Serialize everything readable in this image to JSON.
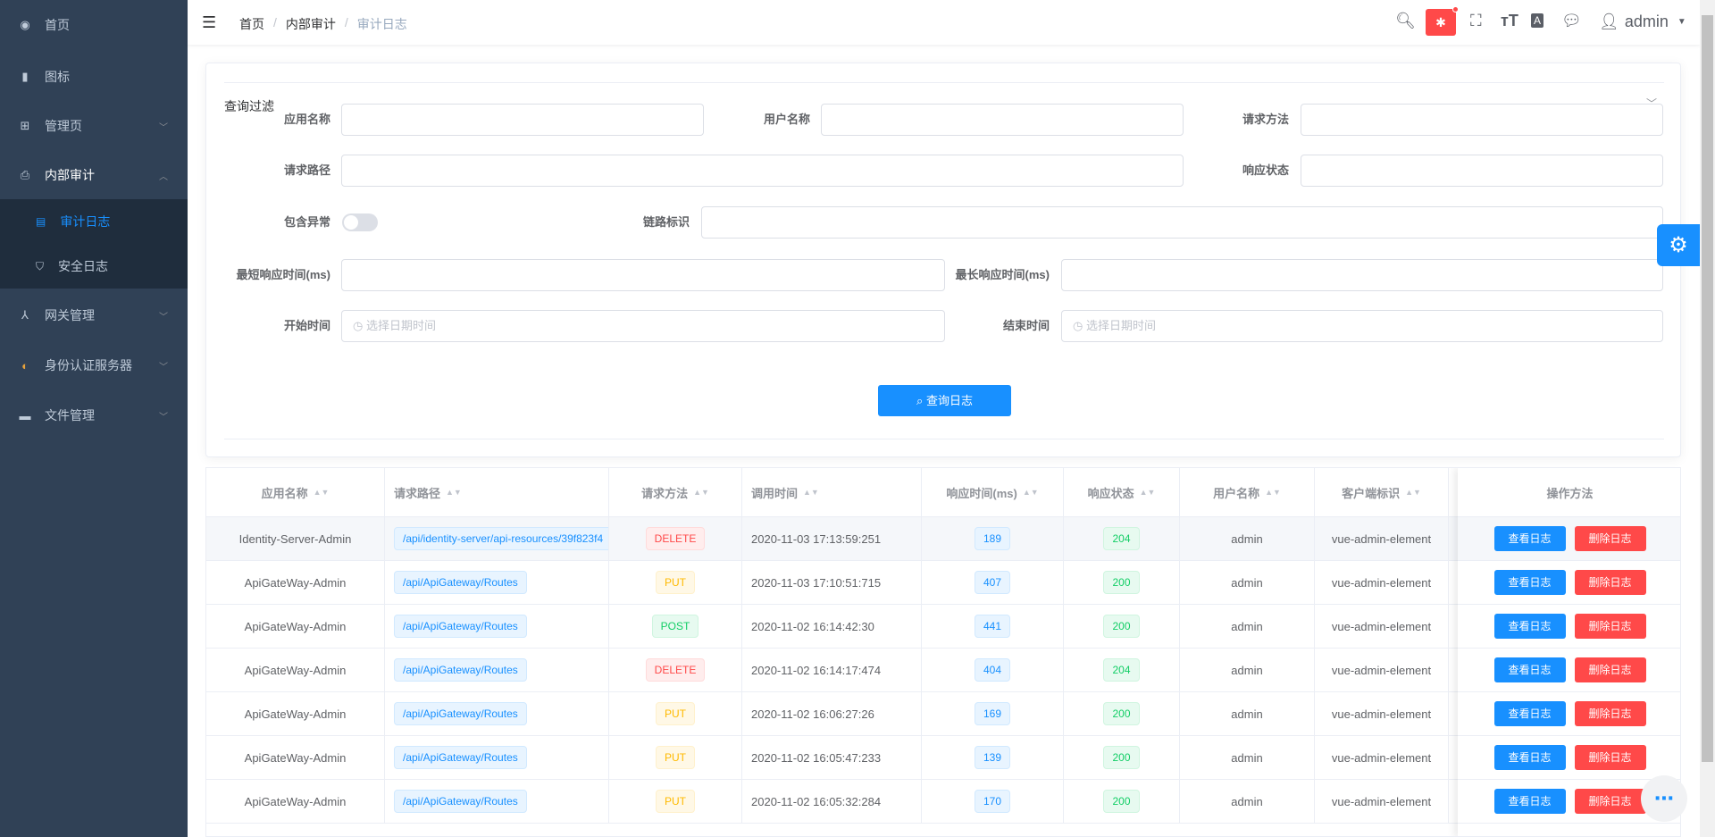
{
  "sidebar": {
    "items": [
      {
        "label": "首页",
        "icon": "dashboard-icon"
      },
      {
        "label": "图标",
        "icon": "icon-icon"
      },
      {
        "label": "管理页",
        "icon": "grid-icon",
        "expandable": true
      },
      {
        "label": "内部审计",
        "icon": "audit-icon",
        "expandable": true,
        "open": true,
        "children": [
          {
            "label": "审计日志",
            "icon": "document-icon",
            "active": true
          },
          {
            "label": "安全日志",
            "icon": "shield-icon"
          }
        ]
      },
      {
        "label": "网关管理",
        "icon": "gateway-icon",
        "expandable": true
      },
      {
        "label": "身份认证服务器",
        "icon": "identity-icon",
        "expandable": true
      },
      {
        "label": "文件管理",
        "icon": "folder-icon",
        "expandable": true
      }
    ]
  },
  "header": {
    "breadcrumb": [
      "首页",
      "内部审计",
      "审计日志"
    ],
    "user": "admin",
    "icons": [
      "search-icon",
      "bug-icon",
      "fullscreen-icon",
      "font-size-icon",
      "translate-icon",
      "message-icon"
    ]
  },
  "filter": {
    "title": "查询过滤",
    "labels": {
      "app": "应用名称",
      "user": "用户名称",
      "method": "请求方法",
      "path": "请求路径",
      "status": "响应状态",
      "exception": "包含异常",
      "trace": "链路标识",
      "min": "最短响应时间(ms)",
      "max": "最长响应时间(ms)",
      "start": "开始时间",
      "end": "结束时间"
    },
    "date_placeholder": "选择日期时间",
    "include_exception": false,
    "search_button": "查询日志"
  },
  "table": {
    "columns": [
      "应用名称",
      "请求路径",
      "请求方法",
      "调用时间",
      "响应时间(ms)",
      "响应状态",
      "用户名称",
      "客户端标识",
      "操作方法"
    ],
    "actions": {
      "view": "查看日志",
      "delete": "删除日志"
    },
    "rows": [
      {
        "app": "Identity-Server-Admin",
        "path": "/api/identity-server/api-resources/39f823f4",
        "method": "DELETE",
        "time": "2020-11-03 17:13:59:251",
        "ms": "189",
        "status": "204",
        "user": "admin",
        "client": "vue-admin-element"
      },
      {
        "app": "ApiGateWay-Admin",
        "path": "/api/ApiGateway/Routes",
        "method": "PUT",
        "time": "2020-11-03 17:10:51:715",
        "ms": "407",
        "status": "200",
        "user": "admin",
        "client": "vue-admin-element"
      },
      {
        "app": "ApiGateWay-Admin",
        "path": "/api/ApiGateway/Routes",
        "method": "POST",
        "time": "2020-11-02 16:14:42:30",
        "ms": "441",
        "status": "200",
        "user": "admin",
        "client": "vue-admin-element"
      },
      {
        "app": "ApiGateWay-Admin",
        "path": "/api/ApiGateway/Routes",
        "method": "DELETE",
        "time": "2020-11-02 16:14:17:474",
        "ms": "404",
        "status": "204",
        "user": "admin",
        "client": "vue-admin-element"
      },
      {
        "app": "ApiGateWay-Admin",
        "path": "/api/ApiGateway/Routes",
        "method": "PUT",
        "time": "2020-11-02 16:06:27:26",
        "ms": "169",
        "status": "200",
        "user": "admin",
        "client": "vue-admin-element"
      },
      {
        "app": "ApiGateWay-Admin",
        "path": "/api/ApiGateway/Routes",
        "method": "PUT",
        "time": "2020-11-02 16:05:47:233",
        "ms": "139",
        "status": "200",
        "user": "admin",
        "client": "vue-admin-element"
      },
      {
        "app": "ApiGateWay-Admin",
        "path": "/api/ApiGateway/Routes",
        "method": "PUT",
        "time": "2020-11-02 16:05:32:284",
        "ms": "170",
        "status": "200",
        "user": "admin",
        "client": "vue-admin-element"
      }
    ]
  },
  "colors": {
    "sidebar": "#304156",
    "submenu": "#1f2d3d",
    "primary": "#1890ff",
    "danger": "#ff4949"
  }
}
